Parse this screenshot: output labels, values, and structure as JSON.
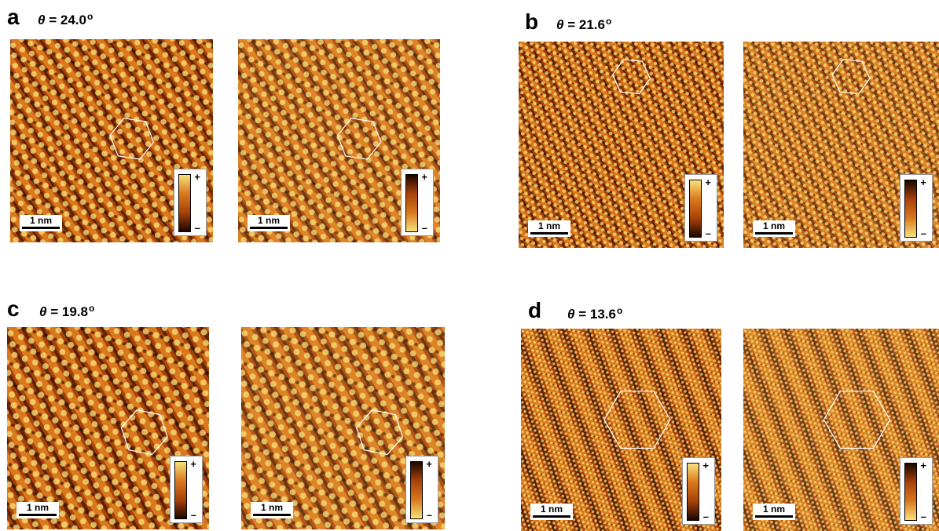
{
  "panels": [
    {
      "letter": "a",
      "theta": "24.0",
      "angle": 24.0
    },
    {
      "letter": "b",
      "theta": "21.6",
      "angle": 21.6
    },
    {
      "letter": "c",
      "theta": "19.8",
      "angle": 19.8
    },
    {
      "letter": "d",
      "theta": "13.6",
      "angle": 13.6
    }
  ],
  "theta_symbol": "θ",
  "equals": " = ",
  "degree_symbol": "o",
  "scale_bar_label": "1 nm",
  "colorbar_plus": "+",
  "colorbar_minus": "–",
  "colors": {
    "afm_dark": "#1a0600",
    "afm_mid": "#a8420a",
    "afm_orange": "#d9781c",
    "afm_bright": "#f8e27c",
    "hexagon": "#ffffff"
  }
}
